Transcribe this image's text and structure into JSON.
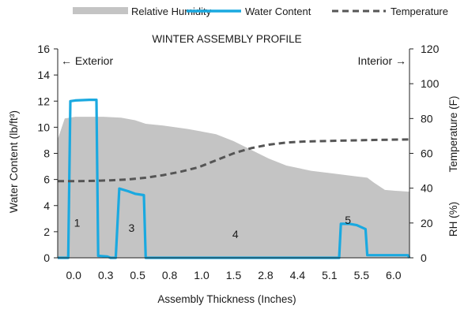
{
  "chart_data": {
    "type": "area",
    "title": "WINTER ASSEMBLY PROFILE",
    "xlabel": "Assembly Thickness (Inches)",
    "ylabel_left": "Water Content (lb/ft³)",
    "ylabel_right": [
      "RH (%)",
      "Temperature (F)"
    ],
    "x_ticks": [
      "0.0",
      "0.3",
      "0.5",
      "0.8",
      "1.0",
      "1.5",
      "2.8",
      "4.4",
      "5.1",
      "5.5",
      "6.0"
    ],
    "x_range": [
      0,
      1
    ],
    "ylim_left": [
      0,
      16
    ],
    "y_ticks_left": [
      0,
      2,
      4,
      6,
      8,
      10,
      12,
      14,
      16
    ],
    "ylim_right": [
      0,
      120
    ],
    "y_ticks_right": [
      0,
      20,
      40,
      60,
      80,
      100,
      120
    ],
    "grid": false,
    "legend_position": "top",
    "legend": [
      {
        "name": "Relative Humidity",
        "kind": "area",
        "color": "#c4c4c4"
      },
      {
        "name": "Water Content",
        "kind": "line",
        "color": "#1aa9e0"
      },
      {
        "name": "Temperature",
        "kind": "dashed",
        "color": "#555555"
      }
    ],
    "series": [
      {
        "name": "Relative Humidity",
        "axis": "right",
        "points": [
          [
            0.0,
            68
          ],
          [
            0.02,
            80
          ],
          [
            0.05,
            81
          ],
          [
            0.13,
            81
          ],
          [
            0.18,
            80.5
          ],
          [
            0.22,
            79
          ],
          [
            0.25,
            77
          ],
          [
            0.3,
            76
          ],
          [
            0.37,
            74
          ],
          [
            0.45,
            71
          ],
          [
            0.5,
            67
          ],
          [
            0.55,
            62
          ],
          [
            0.6,
            57
          ],
          [
            0.65,
            53
          ],
          [
            0.72,
            50
          ],
          [
            0.78,
            48.5
          ],
          [
            0.84,
            47
          ],
          [
            0.88,
            46
          ],
          [
            0.9,
            43
          ],
          [
            0.93,
            39
          ],
          [
            0.96,
            38.5
          ],
          [
            1.0,
            38
          ]
        ]
      },
      {
        "name": "Water Content",
        "axis": "left",
        "points": [
          [
            0.0,
            0
          ],
          [
            0.03,
            0
          ],
          [
            0.036,
            12.0
          ],
          [
            0.05,
            12.05
          ],
          [
            0.09,
            12.1
          ],
          [
            0.11,
            12.1
          ],
          [
            0.115,
            0.15
          ],
          [
            0.14,
            0.1
          ],
          [
            0.15,
            0
          ],
          [
            0.165,
            0
          ],
          [
            0.175,
            5.3
          ],
          [
            0.2,
            5.1
          ],
          [
            0.22,
            4.9
          ],
          [
            0.245,
            4.8
          ],
          [
            0.25,
            0
          ],
          [
            0.8,
            0
          ],
          [
            0.805,
            2.6
          ],
          [
            0.83,
            2.6
          ],
          [
            0.85,
            2.5
          ],
          [
            0.875,
            2.2
          ],
          [
            0.88,
            0.2
          ],
          [
            0.91,
            0.2
          ],
          [
            0.97,
            0.2
          ],
          [
            0.995,
            0.2
          ],
          [
            1.0,
            0
          ]
        ]
      },
      {
        "name": "Temperature",
        "axis": "right",
        "points": [
          [
            0.0,
            44
          ],
          [
            0.05,
            44
          ],
          [
            0.1,
            44.2
          ],
          [
            0.15,
            44.5
          ],
          [
            0.2,
            45
          ],
          [
            0.25,
            46
          ],
          [
            0.3,
            47.5
          ],
          [
            0.35,
            49.5
          ],
          [
            0.4,
            52
          ],
          [
            0.45,
            56
          ],
          [
            0.5,
            60
          ],
          [
            0.55,
            63
          ],
          [
            0.6,
            65
          ],
          [
            0.65,
            66.2
          ],
          [
            0.7,
            66.8
          ],
          [
            0.75,
            67
          ],
          [
            0.8,
            67.3
          ],
          [
            0.9,
            67.7
          ],
          [
            1.0,
            68
          ]
        ]
      }
    ],
    "annotations": [
      {
        "text": "← Exterior",
        "x": 0.0,
        "y": 15.1,
        "align": "left"
      },
      {
        "text": "Interior →",
        "x": 1.0,
        "y": 15.1,
        "align": "right"
      },
      {
        "text": "1",
        "x": 0.055,
        "y": 2.7
      },
      {
        "text": "3",
        "x": 0.21,
        "y": 2.3
      },
      {
        "text": "4",
        "x": 0.505,
        "y": 1.8
      },
      {
        "text": "5",
        "x": 0.825,
        "y": 2.9
      }
    ]
  }
}
